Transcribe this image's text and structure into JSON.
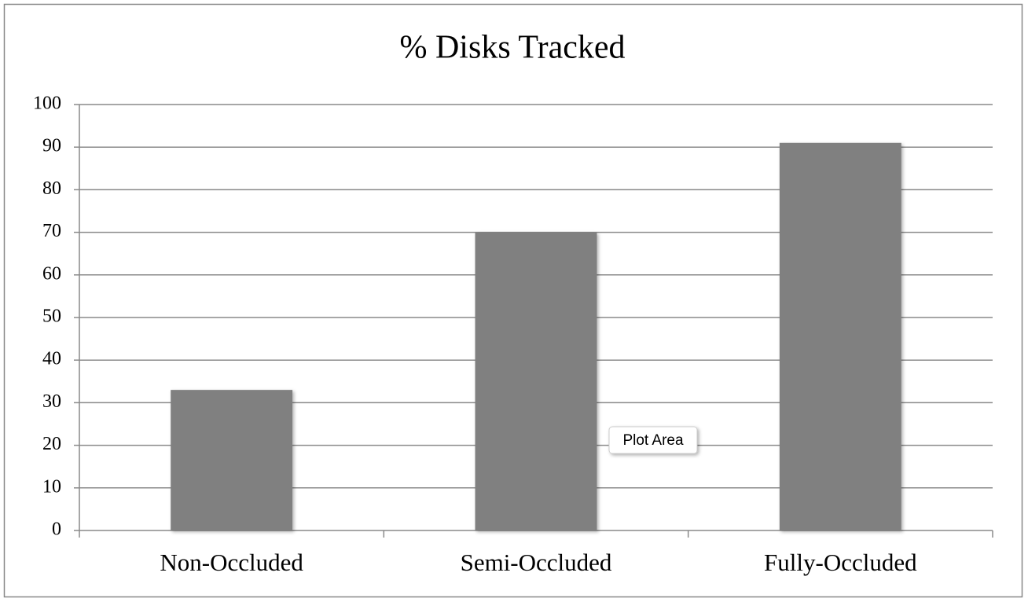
{
  "chart_data": {
    "type": "bar",
    "title": "% Disks Tracked",
    "categories": [
      "Non-Occluded",
      "Semi-Occluded",
      "Fully-Occluded"
    ],
    "values": [
      33,
      70,
      91
    ],
    "color": "#808080",
    "ylim": [
      0,
      100
    ],
    "yticks": [
      0,
      10,
      20,
      30,
      40,
      50,
      60,
      70,
      80,
      90,
      100
    ],
    "grid": true,
    "tooltip": "Plot Area"
  }
}
